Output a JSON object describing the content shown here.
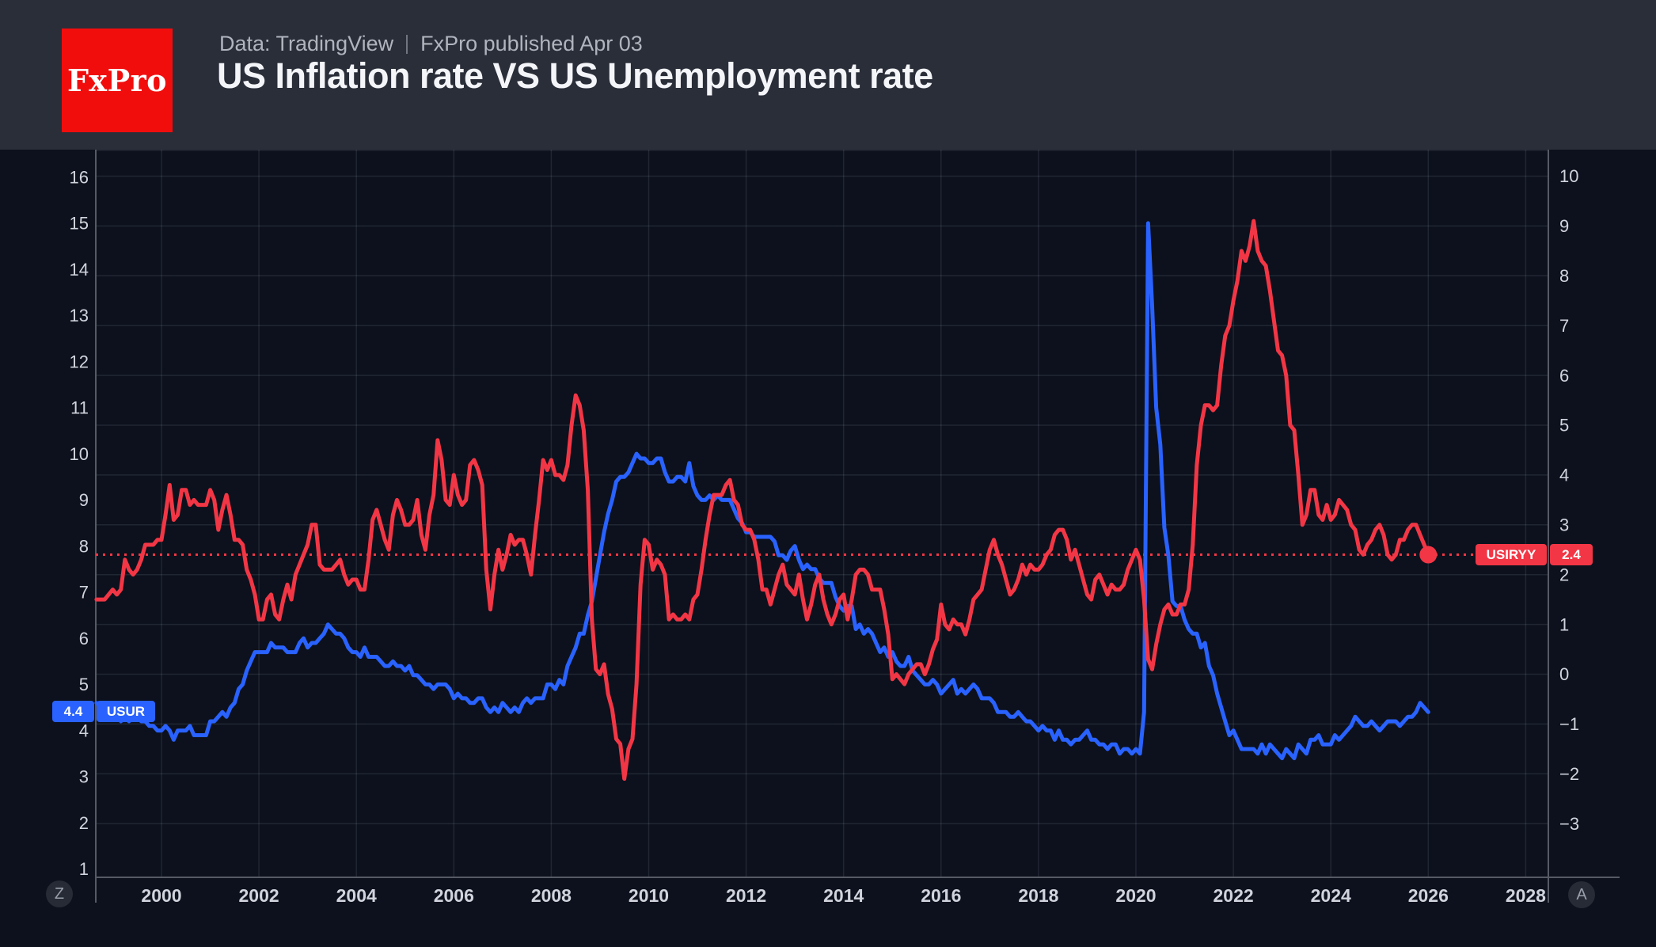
{
  "header": {
    "logo_text": "FxPro",
    "source_note": "Data: TradingView",
    "publish_note": "FxPro published Apr 03",
    "title": "US Inflation rate VS US Unemployment rate"
  },
  "footer": {
    "z_button": "Z",
    "a_button": "A"
  },
  "colors": {
    "header_bg": "#2a2e39",
    "chart_bg": "#0c111d",
    "gridline": "rgba(180,186,202,0.13)",
    "axis_line": "#565a64",
    "axis_text": "#d1d4dc",
    "inflation_red": "#f23645",
    "unemployment_blue": "#2962ff",
    "logo_red": "#f20d0d",
    "badge_text": "#ffffff"
  },
  "chart_data": {
    "type": "line",
    "title": "US Inflation rate VS US Unemployment rate",
    "frequency": "monthly",
    "start": {
      "year": 1998,
      "month": 9
    },
    "x_axis": {
      "tick_years": [
        2000,
        2002,
        2004,
        2006,
        2008,
        2010,
        2012,
        2014,
        2016,
        2018,
        2020,
        2022,
        2024,
        2026,
        2028
      ],
      "tick_labels": [
        "2000",
        "2002",
        "2004",
        "2006",
        "2008",
        "2010",
        "2012",
        "2014",
        "2016",
        "2018",
        "2020",
        "2022",
        "2024",
        "2026",
        "2028"
      ]
    },
    "left_axis": {
      "min": 1,
      "max": 16,
      "tick_values": [
        16,
        15,
        14,
        13,
        12,
        11,
        10,
        9,
        8,
        7,
        6,
        5,
        4,
        3,
        2,
        1
      ],
      "tick_labels": [
        "16",
        "15",
        "14",
        "13",
        "12",
        "11",
        "10",
        "9",
        "8",
        "7",
        "6",
        "5",
        "4",
        "3",
        "2",
        "1"
      ]
    },
    "right_axis": {
      "min": -3,
      "max": 10,
      "tick_values": [
        10,
        9,
        8,
        7,
        6,
        5,
        4,
        3,
        2,
        1,
        0,
        -1,
        -2,
        -3
      ],
      "tick_labels": [
        "10",
        "9",
        "8",
        "7",
        "6",
        "5",
        "4",
        "3",
        "2",
        "1",
        "0",
        "−1",
        "−2",
        "−3"
      ]
    },
    "reference_line": {
      "axis": "right",
      "value": 2.4,
      "style": "dotted",
      "color": "#f23645"
    },
    "series": [
      {
        "name": "USIRYY",
        "axis": "right",
        "color": "#f23645",
        "last_value": 2.4,
        "last_value_label": "2.4",
        "end_dot": true,
        "values": [
          1.5,
          1.5,
          1.5,
          1.6,
          1.7,
          1.6,
          1.7,
          2.3,
          2.1,
          2.0,
          2.1,
          2.3,
          2.6,
          2.6,
          2.6,
          2.7,
          2.7,
          3.2,
          3.8,
          3.1,
          3.2,
          3.7,
          3.7,
          3.4,
          3.5,
          3.4,
          3.4,
          3.4,
          3.7,
          3.5,
          2.9,
          3.3,
          3.6,
          3.2,
          2.7,
          2.7,
          2.6,
          2.1,
          1.9,
          1.6,
          1.1,
          1.1,
          1.5,
          1.6,
          1.2,
          1.1,
          1.5,
          1.8,
          1.5,
          2.0,
          2.2,
          2.4,
          2.6,
          3.0,
          3.0,
          2.2,
          2.1,
          2.1,
          2.1,
          2.2,
          2.3,
          2.0,
          1.8,
          1.9,
          1.9,
          1.7,
          1.7,
          2.3,
          3.1,
          3.3,
          3.0,
          2.7,
          2.5,
          3.2,
          3.5,
          3.3,
          3.0,
          3.0,
          3.1,
          3.5,
          2.8,
          2.5,
          3.2,
          3.6,
          4.7,
          4.3,
          3.5,
          3.4,
          4.0,
          3.6,
          3.4,
          3.5,
          4.2,
          4.3,
          4.1,
          3.8,
          2.1,
          1.3,
          2.0,
          2.5,
          2.1,
          2.4,
          2.8,
          2.6,
          2.7,
          2.7,
          2.4,
          2.0,
          2.8,
          3.5,
          4.3,
          4.1,
          4.3,
          4.0,
          4.0,
          3.9,
          4.2,
          5.0,
          5.6,
          5.4,
          4.9,
          3.7,
          1.1,
          0.1,
          0.0,
          0.2,
          -0.4,
          -0.7,
          -1.3,
          -1.4,
          -2.1,
          -1.5,
          -1.3,
          -0.2,
          1.8,
          2.7,
          2.6,
          2.1,
          2.3,
          2.2,
          2.0,
          1.1,
          1.2,
          1.1,
          1.1,
          1.2,
          1.1,
          1.5,
          1.6,
          2.1,
          2.7,
          3.2,
          3.6,
          3.6,
          3.6,
          3.8,
          3.9,
          3.5,
          3.4,
          3.0,
          2.9,
          2.9,
          2.7,
          2.3,
          1.7,
          1.7,
          1.4,
          1.7,
          2.0,
          2.2,
          1.8,
          1.7,
          1.6,
          2.0,
          1.5,
          1.1,
          1.4,
          1.8,
          2.0,
          1.5,
          1.2,
          1.0,
          1.2,
          1.5,
          1.6,
          1.1,
          1.5,
          2.0,
          2.1,
          2.1,
          2.0,
          1.7,
          1.7,
          1.7,
          1.3,
          0.8,
          -0.1,
          0.0,
          -0.1,
          -0.2,
          0.0,
          0.1,
          0.2,
          0.2,
          0.0,
          0.2,
          0.5,
          0.7,
          1.4,
          1.0,
          0.9,
          1.1,
          1.0,
          1.0,
          0.8,
          1.1,
          1.5,
          1.6,
          1.7,
          2.1,
          2.5,
          2.7,
          2.4,
          2.2,
          1.9,
          1.6,
          1.7,
          1.9,
          2.2,
          2.0,
          2.2,
          2.1,
          2.1,
          2.2,
          2.4,
          2.5,
          2.8,
          2.9,
          2.9,
          2.7,
          2.3,
          2.5,
          2.2,
          1.9,
          1.6,
          1.5,
          1.9,
          2.0,
          1.8,
          1.6,
          1.8,
          1.7,
          1.7,
          1.8,
          2.1,
          2.3,
          2.5,
          2.3,
          1.5,
          0.3,
          0.1,
          0.6,
          1.0,
          1.3,
          1.4,
          1.2,
          1.2,
          1.4,
          1.4,
          1.7,
          2.6,
          4.2,
          5.0,
          5.4,
          5.4,
          5.3,
          5.4,
          6.2,
          6.8,
          7.0,
          7.5,
          7.9,
          8.5,
          8.3,
          8.6,
          9.1,
          8.5,
          8.3,
          8.2,
          7.7,
          7.1,
          6.5,
          6.4,
          6.0,
          5.0,
          4.9,
          4.0,
          3.0,
          3.2,
          3.7,
          3.7,
          3.2,
          3.1,
          3.4,
          3.1,
          3.2,
          3.5,
          3.4,
          3.3,
          3.0,
          2.9,
          2.5,
          2.4,
          2.6,
          2.7,
          2.9,
          3.0,
          2.8,
          2.4,
          2.3,
          2.4,
          2.7,
          2.7,
          2.9,
          3.0,
          3.0,
          2.8,
          2.6,
          2.4
        ]
      },
      {
        "name": "USUR",
        "axis": "left",
        "color": "#2962ff",
        "last_value": 4.4,
        "last_value_label": "4.4",
        "end_dot": false,
        "values": [
          4.6,
          4.5,
          4.4,
          4.4,
          4.3,
          4.4,
          4.2,
          4.3,
          4.2,
          4.3,
          4.3,
          4.2,
          4.2,
          4.1,
          4.1,
          4.0,
          4.0,
          4.1,
          4.0,
          3.8,
          4.0,
          4.0,
          4.0,
          4.1,
          3.9,
          3.9,
          3.9,
          3.9,
          4.2,
          4.2,
          4.3,
          4.4,
          4.3,
          4.5,
          4.6,
          4.9,
          5.0,
          5.3,
          5.5,
          5.7,
          5.7,
          5.7,
          5.7,
          5.9,
          5.8,
          5.8,
          5.8,
          5.7,
          5.7,
          5.7,
          5.9,
          6.0,
          5.8,
          5.9,
          5.9,
          6.0,
          6.1,
          6.3,
          6.2,
          6.1,
          6.1,
          6.0,
          5.8,
          5.7,
          5.7,
          5.6,
          5.8,
          5.6,
          5.6,
          5.6,
          5.5,
          5.4,
          5.4,
          5.5,
          5.4,
          5.4,
          5.3,
          5.4,
          5.2,
          5.2,
          5.1,
          5.0,
          5.0,
          4.9,
          5.0,
          5.0,
          5.0,
          4.9,
          4.7,
          4.8,
          4.7,
          4.7,
          4.6,
          4.6,
          4.7,
          4.7,
          4.5,
          4.4,
          4.5,
          4.4,
          4.6,
          4.5,
          4.4,
          4.5,
          4.4,
          4.6,
          4.7,
          4.6,
          4.7,
          4.7,
          4.7,
          5.0,
          5.0,
          4.9,
          5.1,
          5.0,
          5.4,
          5.6,
          5.8,
          6.1,
          6.1,
          6.5,
          6.8,
          7.3,
          7.8,
          8.3,
          8.7,
          9.0,
          9.4,
          9.5,
          9.5,
          9.6,
          9.8,
          10.0,
          9.9,
          9.9,
          9.8,
          9.8,
          9.9,
          9.9,
          9.6,
          9.4,
          9.4,
          9.5,
          9.5,
          9.4,
          9.8,
          9.3,
          9.1,
          9.0,
          9.0,
          9.1,
          9.0,
          9.1,
          9.0,
          9.0,
          9.0,
          8.8,
          8.6,
          8.5,
          8.3,
          8.3,
          8.2,
          8.2,
          8.2,
          8.2,
          8.2,
          8.1,
          7.8,
          7.8,
          7.7,
          7.9,
          8.0,
          7.7,
          7.5,
          7.6,
          7.5,
          7.5,
          7.3,
          7.2,
          7.2,
          7.2,
          6.9,
          6.7,
          6.6,
          6.7,
          6.7,
          6.2,
          6.3,
          6.1,
          6.2,
          6.1,
          5.9,
          5.7,
          5.8,
          5.6,
          5.7,
          5.5,
          5.4,
          5.4,
          5.6,
          5.3,
          5.2,
          5.1,
          5.0,
          5.0,
          5.1,
          5.0,
          4.8,
          4.9,
          5.0,
          5.1,
          4.8,
          4.9,
          4.8,
          4.9,
          5.0,
          4.9,
          4.7,
          4.7,
          4.7,
          4.6,
          4.4,
          4.4,
          4.4,
          4.3,
          4.3,
          4.4,
          4.3,
          4.2,
          4.2,
          4.1,
          4.0,
          4.1,
          4.0,
          4.0,
          3.8,
          4.0,
          3.8,
          3.8,
          3.7,
          3.8,
          3.8,
          3.9,
          4.0,
          3.8,
          3.8,
          3.7,
          3.7,
          3.6,
          3.7,
          3.7,
          3.5,
          3.6,
          3.6,
          3.5,
          3.6,
          3.5,
          4.4,
          15.0,
          13.2,
          11.0,
          10.2,
          8.4,
          7.8,
          6.8,
          6.7,
          6.7,
          6.4,
          6.2,
          6.1,
          6.1,
          5.8,
          5.9,
          5.4,
          5.2,
          4.8,
          4.5,
          4.2,
          3.9,
          4.0,
          3.8,
          3.6,
          3.6,
          3.6,
          3.6,
          3.5,
          3.7,
          3.5,
          3.7,
          3.6,
          3.5,
          3.4,
          3.6,
          3.5,
          3.4,
          3.7,
          3.6,
          3.5,
          3.8,
          3.8,
          3.9,
          3.7,
          3.7,
          3.7,
          3.9,
          3.8,
          3.9,
          4.0,
          4.1,
          4.3,
          4.2,
          4.1,
          4.1,
          4.2,
          4.1,
          4.0,
          4.1,
          4.2,
          4.2,
          4.2,
          4.1,
          4.2,
          4.3,
          4.3,
          4.4,
          4.6,
          4.5,
          4.4
        ]
      }
    ]
  }
}
